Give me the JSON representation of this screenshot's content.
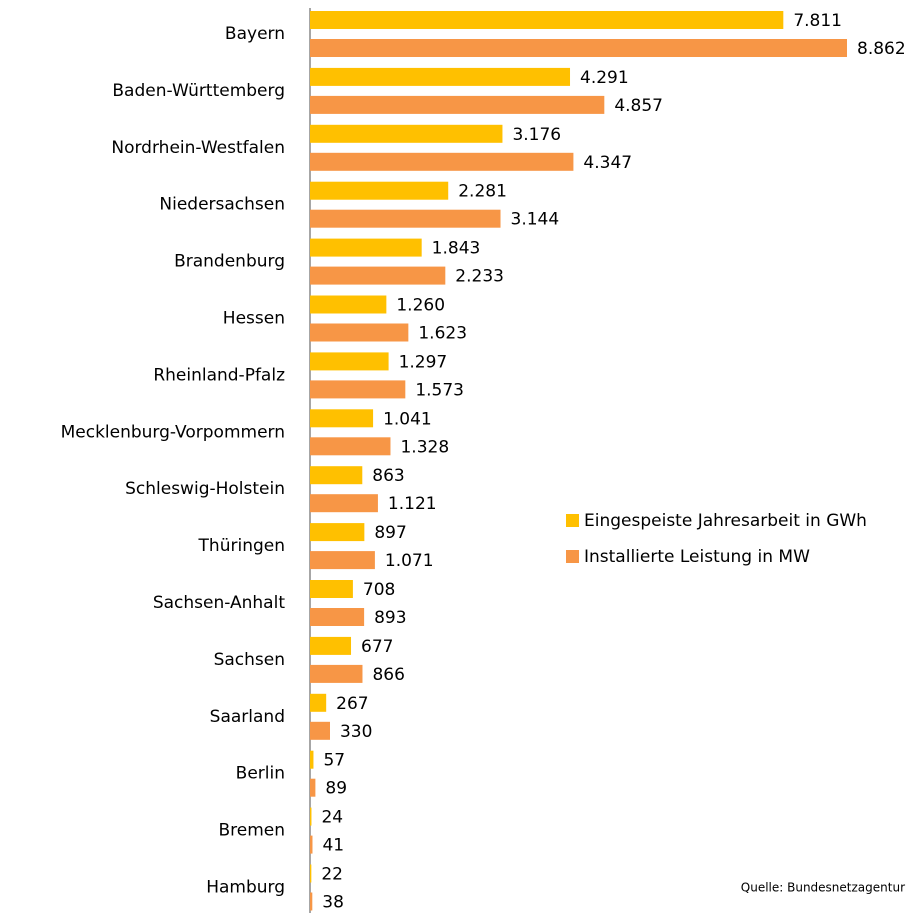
{
  "chart_data": {
    "type": "bar",
    "orientation": "horizontal",
    "categories": [
      "Bayern",
      "Baden-Württemberg",
      "Nordrhein-Westfalen",
      "Niedersachsen",
      "Brandenburg",
      "Hessen",
      "Rheinland-Pfalz",
      "Mecklenburg-Vorpommern",
      "Schleswig-Holstein",
      "Thüringen",
      "Sachsen-Anhalt",
      "Sachsen",
      "Saarland",
      "Berlin",
      "Bremen",
      "Hamburg"
    ],
    "series": [
      {
        "name": "Eingespeiste Jahresarbeit in GWh",
        "color": "#ffc000",
        "values": [
          7811,
          4291,
          3176,
          2281,
          1843,
          1260,
          1297,
          1041,
          863,
          897,
          708,
          677,
          267,
          57,
          24,
          22
        ],
        "value_labels": [
          "7.811",
          "4.291",
          "3.176",
          "2.281",
          "1.843",
          "1.260",
          "1.297",
          "1.041",
          "863",
          "897",
          "708",
          "677",
          "267",
          "57",
          "24",
          "22"
        ]
      },
      {
        "name": "Installierte Leistung in MW",
        "color": "#f79646",
        "values": [
          8862,
          4857,
          4347,
          3144,
          2233,
          1623,
          1573,
          1328,
          1121,
          1071,
          893,
          866,
          330,
          89,
          41,
          38
        ],
        "value_labels": [
          "8.862",
          "4.857",
          "4.347",
          "3.144",
          "2.233",
          "1.623",
          "1.573",
          "1.328",
          "1.121",
          "1.071",
          "893",
          "866",
          "330",
          "89",
          "41",
          "38"
        ]
      }
    ],
    "legend": "right",
    "annotation": "Quelle: Bundesnetzagentur"
  }
}
